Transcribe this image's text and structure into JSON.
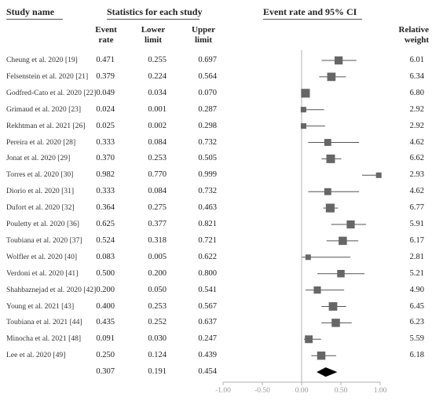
{
  "headers": {
    "study_name": "Study name",
    "statistics": "Statistics for each study",
    "event_rate_ci": "Event rate and 95% CI",
    "col_event_rate": [
      "Event",
      "rate"
    ],
    "col_lower": [
      "Lower",
      "limit"
    ],
    "col_upper": [
      "Upper",
      "limit"
    ],
    "col_weight": [
      "Relative",
      "weight"
    ]
  },
  "chart_data": {
    "type": "forest",
    "x_ticks": [
      "-1.00",
      "-0.50",
      "0.00",
      "0.50",
      "1.00"
    ],
    "xlim": [
      -1.0,
      1.0
    ],
    "studies": [
      {
        "name": "Cheung et al. 2020 [19]",
        "rate": "0.471",
        "lower": "0.255",
        "upper": "0.697",
        "weight": "6.01"
      },
      {
        "name": "Felsenstein et al. 2020 [21]",
        "rate": "0.379",
        "lower": "0.224",
        "upper": "0.564",
        "weight": "6.34"
      },
      {
        "name": "Godfred-Cato et al. 2020 [22]",
        "rate": "0.049",
        "lower": "0.034",
        "upper": "0.070",
        "weight": "6.80"
      },
      {
        "name": "Grimaud et al. 2020 [23]",
        "rate": "0.024",
        "lower": "0.001",
        "upper": "0.287",
        "weight": "2.92"
      },
      {
        "name": "Rekhtman et al. 2021 [26]",
        "rate": "0.025",
        "lower": "0.002",
        "upper": "0.298",
        "weight": "2.92"
      },
      {
        "name": "Pereira et al. 2020 [28]",
        "rate": "0.333",
        "lower": "0.084",
        "upper": "0.732",
        "weight": "4.62"
      },
      {
        "name": "Jonat et al. 2020 [29]",
        "rate": "0.370",
        "lower": "0.253",
        "upper": "0.505",
        "weight": "6.62"
      },
      {
        "name": "Torres et al. 2020 [30]",
        "rate": "0.982",
        "lower": "0.770",
        "upper": "0.999",
        "weight": "2.93"
      },
      {
        "name": "Diorio et al. 2020 [31]",
        "rate": "0.333",
        "lower": "0.084",
        "upper": "0.732",
        "weight": "4.62"
      },
      {
        "name": "Dufort et al. 2020 [32]",
        "rate": "0.364",
        "lower": "0.275",
        "upper": "0.463",
        "weight": "6.77"
      },
      {
        "name": "Pouletty et al. 2020 [36]",
        "rate": "0.625",
        "lower": "0.377",
        "upper": "0.821",
        "weight": "5.91"
      },
      {
        "name": "Toubiana et al. 2020 [37]",
        "rate": "0.524",
        "lower": "0.318",
        "upper": "0.721",
        "weight": "6.17"
      },
      {
        "name": "Wolfler et al. 2020 [40]",
        "rate": "0.083",
        "lower": "0.005",
        "upper": "0.622",
        "weight": "2.81"
      },
      {
        "name": "Verdoni et al. 2020 [41]",
        "rate": "0.500",
        "lower": "0.200",
        "upper": "0.800",
        "weight": "5.21"
      },
      {
        "name": "Shahbaznejad et al. 2020 [42]",
        "rate": "0.200",
        "lower": "0.050",
        "upper": "0.541",
        "weight": "4.90"
      },
      {
        "name": "Young et al. 2021 [43]",
        "rate": "0.400",
        "lower": "0.253",
        "upper": "0.567",
        "weight": "6.45"
      },
      {
        "name": "Toubiana et al. 2021 [44]",
        "rate": "0.435",
        "lower": "0.252",
        "upper": "0.637",
        "weight": "6.23"
      },
      {
        "name": "Minocha et al. 2021 [48]",
        "rate": "0.091",
        "lower": "0.030",
        "upper": "0.247",
        "weight": "5.59"
      },
      {
        "name": "Lee et al. 2020 [49]",
        "rate": "0.250",
        "lower": "0.124",
        "upper": "0.439",
        "weight": "6.18"
      }
    ],
    "pooled": {
      "rate": "0.307",
      "lower": "0.191",
      "upper": "0.454"
    }
  },
  "colors": {
    "marker": "#666666",
    "pooled": "#000000",
    "ci_line": "#555555",
    "axis": "#b0b0b0"
  }
}
